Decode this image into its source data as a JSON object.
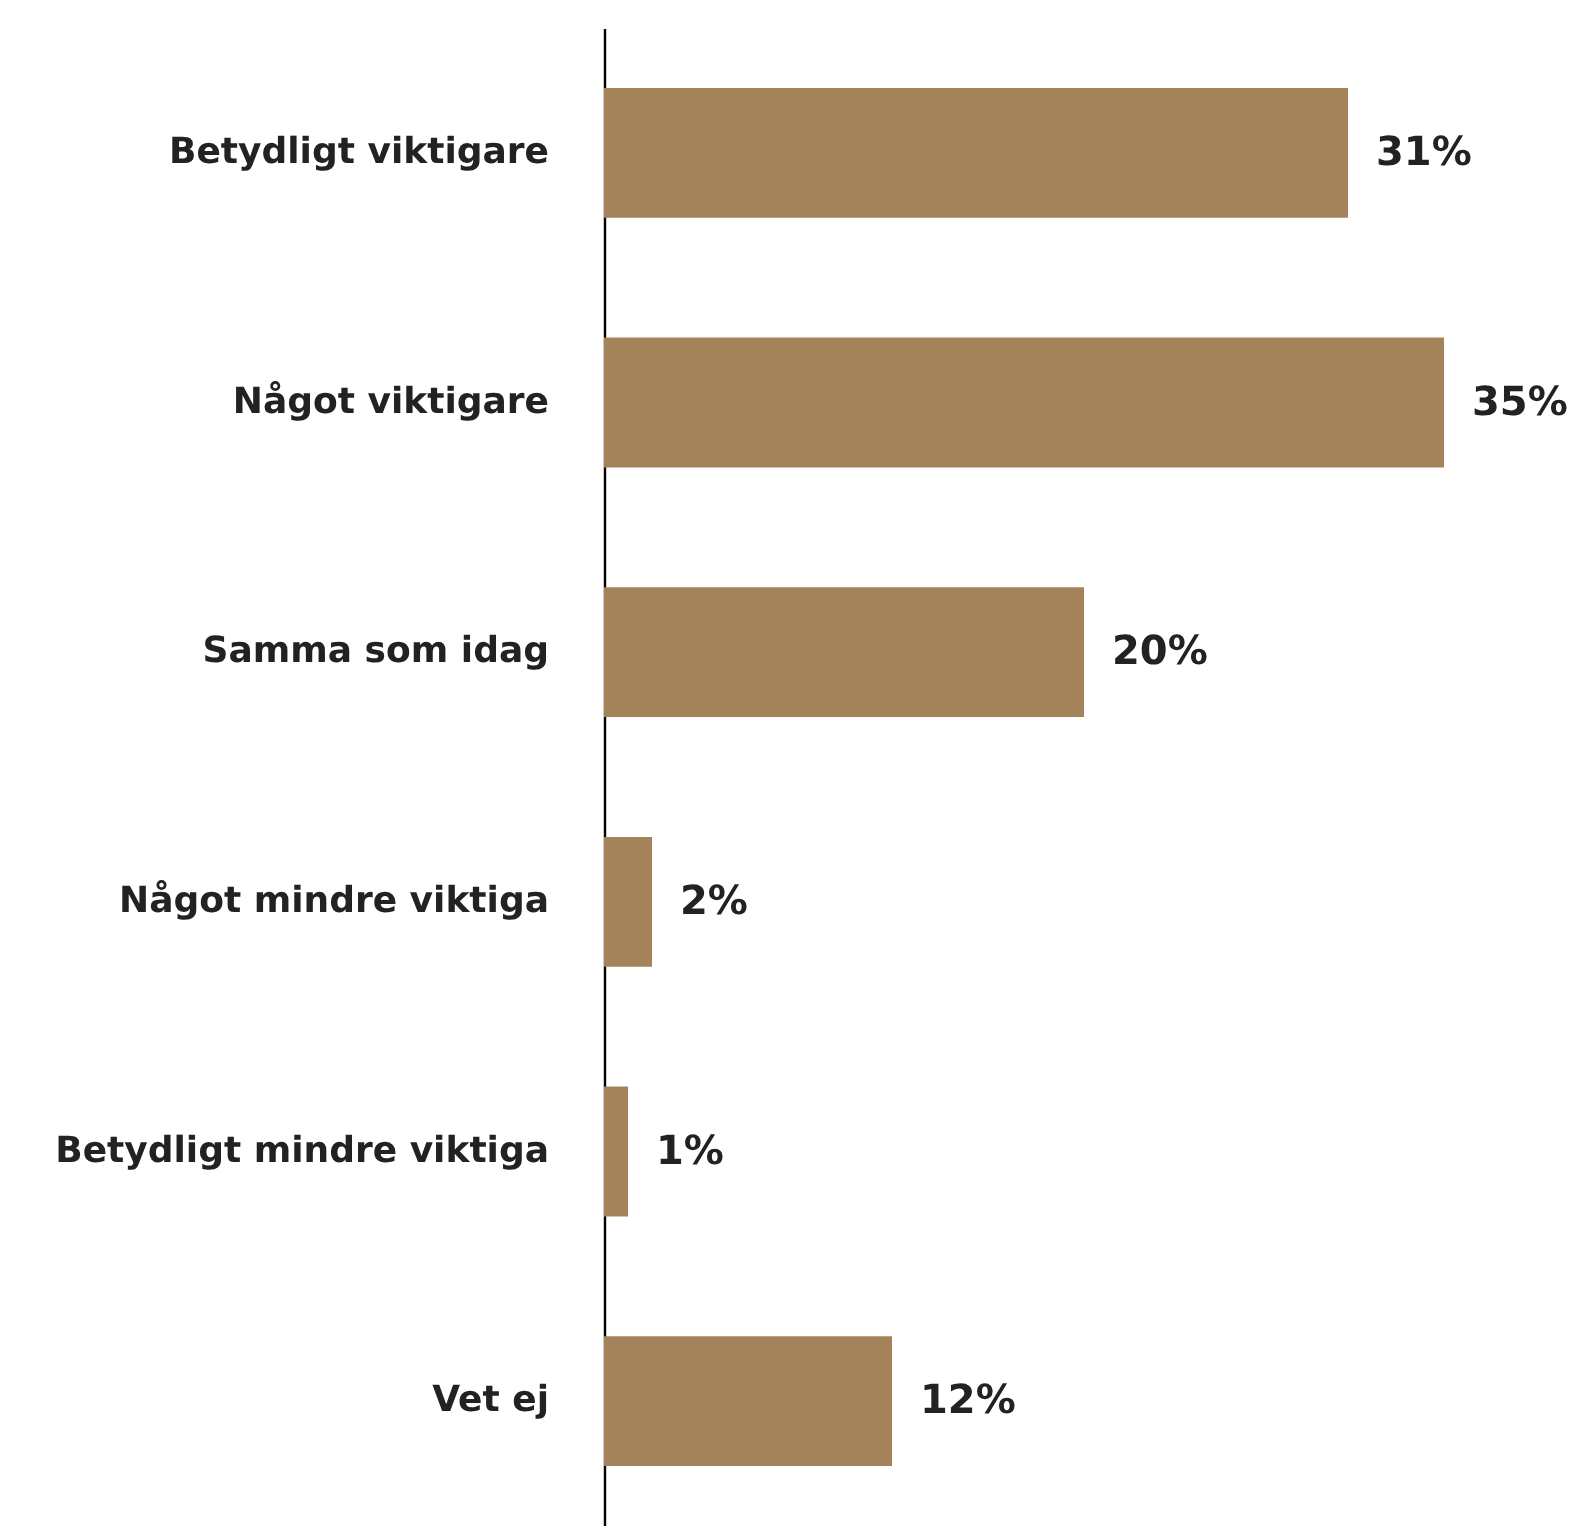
{
  "chart_data": {
    "type": "bar",
    "orientation": "horizontal",
    "categories": [
      "Betydligt viktigare",
      "Något viktigare",
      "Samma som idag",
      "Något mindre viktiga",
      "Betydligt mindre viktiga",
      "Vet ej"
    ],
    "values": [
      31,
      35,
      20,
      2,
      1,
      12
    ],
    "color": "#a5835a",
    "value_labels": [
      "31%",
      "35%",
      "20%",
      "2%",
      "1%",
      "12%"
    ]
  }
}
